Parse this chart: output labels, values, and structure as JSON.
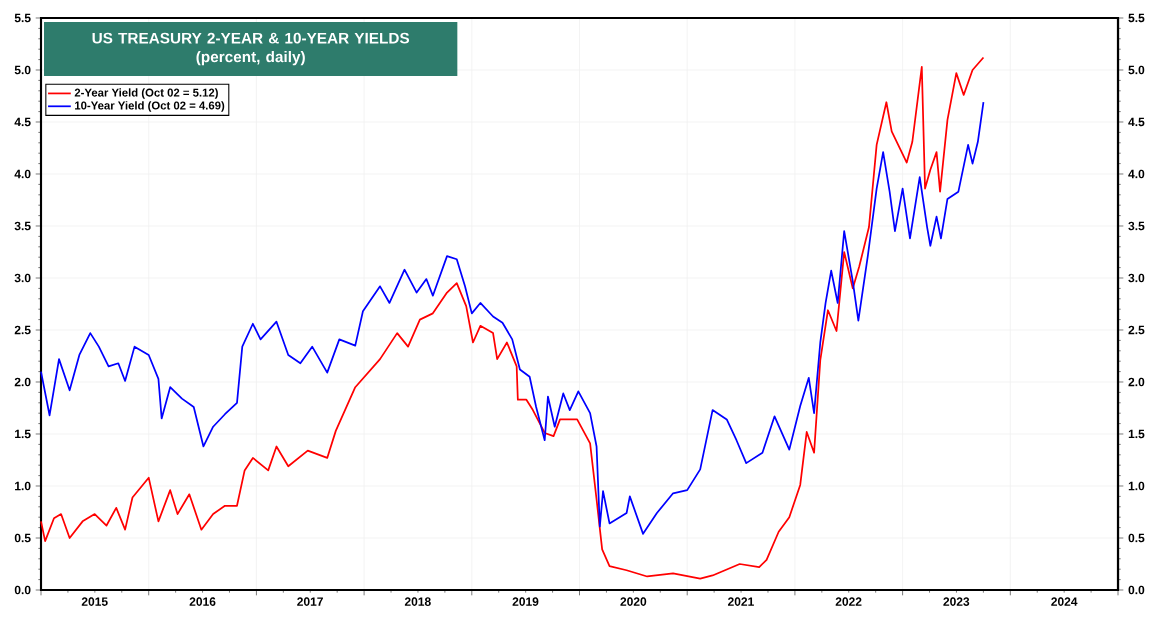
{
  "chart_data": {
    "type": "line",
    "title": "US TREASURY 2-YEAR & 10-YEAR YIELDS",
    "subtitle": "(percent, daily)",
    "xlim": [
      "2015-01-01",
      "2025-01-01"
    ],
    "xticks": [
      {
        "value": "2015-01-01",
        "label": null
      },
      {
        "value": "2016-01-01",
        "label": null
      },
      {
        "value": "2017-01-01",
        "label": null
      },
      {
        "value": "2018-01-01",
        "label": null
      },
      {
        "value": "2019-01-01",
        "label": null
      },
      {
        "value": "2020-01-01",
        "label": null
      },
      {
        "value": "2021-01-01",
        "label": null
      },
      {
        "value": "2022-01-01",
        "label": null
      },
      {
        "value": "2023-01-01",
        "label": null
      },
      {
        "value": "2024-01-01",
        "label": null
      },
      {
        "value": "2025-01-01",
        "label": null
      },
      {
        "value": "2015-07-02",
        "label": "2015"
      },
      {
        "value": "2016-07-02",
        "label": "2016"
      },
      {
        "value": "2017-07-02",
        "label": "2017"
      },
      {
        "value": "2018-07-02",
        "label": "2018"
      },
      {
        "value": "2019-07-02",
        "label": "2019"
      },
      {
        "value": "2020-07-02",
        "label": "2020"
      },
      {
        "value": "2021-07-02",
        "label": "2021"
      },
      {
        "value": "2022-07-02",
        "label": "2022"
      },
      {
        "value": "2023-07-02",
        "label": "2023"
      },
      {
        "value": "2024-07-02",
        "label": "2024"
      }
    ],
    "ylim": [
      0,
      5.5
    ],
    "yticks": [
      {
        "value": 0,
        "label": "0.0"
      },
      {
        "value": 0.5,
        "label": "0.5"
      },
      {
        "value": 1,
        "label": "1.0"
      },
      {
        "value": 1.5,
        "label": "1.5"
      },
      {
        "value": 2,
        "label": "2.0"
      },
      {
        "value": 2.5,
        "label": "2.5"
      },
      {
        "value": 3,
        "label": "3.0"
      },
      {
        "value": 3.5,
        "label": "3.5"
      },
      {
        "value": 4,
        "label": "4.0"
      },
      {
        "value": 4.5,
        "label": "4.5"
      },
      {
        "value": 5,
        "label": "5.0"
      },
      {
        "value": 5.5,
        "label": "5.5"
      }
    ],
    "y2lim": [
      0,
      5.5
    ],
    "y2ticks": [
      {
        "value": 0,
        "label": "0.0"
      },
      {
        "value": 0.5,
        "label": "0.5"
      },
      {
        "value": 1,
        "label": "1.0"
      },
      {
        "value": 1.5,
        "label": "1.5"
      },
      {
        "value": 2,
        "label": "2.0"
      },
      {
        "value": 2.5,
        "label": "2.5"
      },
      {
        "value": 3,
        "label": "3.0"
      },
      {
        "value": 3.5,
        "label": "3.5"
      },
      {
        "value": 4,
        "label": "4.0"
      },
      {
        "value": 4.5,
        "label": "4.5"
      },
      {
        "value": 5,
        "label": "5.0"
      },
      {
        "value": 5.5,
        "label": "5.5"
      }
    ],
    "grid": true,
    "legend": "top left",
    "marker": "none",
    "line_style": "solid",
    "series": [
      {
        "name": "2-Year Yield (Oct 02 = 5.12)",
        "color": "#ff0000",
        "x": [
          "2015-01-01",
          "2015-01-15",
          "2015-02-14",
          "2015-03-10",
          "2015-04-08",
          "2015-05-22",
          "2015-07-02",
          "2015-08-11",
          "2015-09-13",
          "2015-10-13",
          "2015-11-07",
          "2016-01-01",
          "2016-02-03",
          "2016-03-14",
          "2016-04-08",
          "2016-05-18",
          "2016-06-28",
          "2016-08-07",
          "2016-09-16",
          "2016-10-27",
          "2016-11-22",
          "2016-12-20",
          "2017-02-10",
          "2017-03-10",
          "2017-04-19",
          "2017-06-24",
          "2017-08-29",
          "2017-09-27",
          "2017-12-02",
          "2018-02-24",
          "2018-04-23",
          "2018-05-30",
          "2018-07-09",
          "2018-08-22",
          "2018-10-09",
          "2018-11-11",
          "2018-12-13",
          "2019-01-05",
          "2019-01-30",
          "2019-03-14",
          "2019-03-28",
          "2019-04-30",
          "2019-06-02",
          "2019-06-06",
          "2019-07-05",
          "2019-07-27",
          "2019-09-05",
          "2019-10-05",
          "2019-10-27",
          "2019-12-24",
          "2020-02-06",
          "2020-02-28",
          "2020-03-18",
          "2020-04-12",
          "2020-06-09",
          "2020-08-18",
          "2020-11-14",
          "2021-02-14",
          "2021-03-28",
          "2021-06-28",
          "2021-09-02",
          "2021-09-27",
          "2021-11-07",
          "2021-12-13",
          "2022-01-19",
          "2022-02-10",
          "2022-03-07",
          "2022-03-28",
          "2022-04-23",
          "2022-05-22",
          "2022-06-17",
          "2022-07-16",
          "2022-08-07",
          "2022-09-09",
          "2022-10-05",
          "2022-11-07",
          "2022-11-25",
          "2022-12-17",
          "2023-01-15",
          "2023-02-03",
          "2023-03-07",
          "2023-03-18",
          "2023-04-05",
          "2023-04-26",
          "2023-05-08",
          "2023-06-02",
          "2023-07-02",
          "2023-07-27",
          "2023-08-26",
          "2023-10-02"
        ],
        "values": [
          0.66,
          0.47,
          0.69,
          0.73,
          0.5,
          0.66,
          0.73,
          0.62,
          0.79,
          0.58,
          0.89,
          1.08,
          0.66,
          0.96,
          0.73,
          0.92,
          0.58,
          0.73,
          0.81,
          0.81,
          1.15,
          1.27,
          1.15,
          1.38,
          1.19,
          1.34,
          1.27,
          1.53,
          1.95,
          2.22,
          2.47,
          2.34,
          2.6,
          2.66,
          2.86,
          2.95,
          2.73,
          2.38,
          2.54,
          2.47,
          2.22,
          2.38,
          2.15,
          1.83,
          1.83,
          1.73,
          1.51,
          1.48,
          1.64,
          1.64,
          1.41,
          0.87,
          0.39,
          0.23,
          0.19,
          0.13,
          0.16,
          0.11,
          0.14,
          0.25,
          0.22,
          0.29,
          0.56,
          0.7,
          1.01,
          1.52,
          1.32,
          2.21,
          2.69,
          2.49,
          3.25,
          2.9,
          3.11,
          3.49,
          4.28,
          4.69,
          4.41,
          4.28,
          4.11,
          4.31,
          5.03,
          3.86,
          4.04,
          4.21,
          3.83,
          4.52,
          4.97,
          4.76,
          5.0,
          5.12
        ]
      },
      {
        "name": "10-Year Yield (Oct 02 = 4.69)",
        "color": "#0000ff",
        "x": [
          "2015-01-01",
          "2015-01-30",
          "2015-03-03",
          "2015-04-08",
          "2015-05-11",
          "2015-06-17",
          "2015-07-16",
          "2015-08-18",
          "2015-09-20",
          "2015-10-13",
          "2015-11-14",
          "2016-01-01",
          "2016-02-03",
          "2016-02-14",
          "2016-03-14",
          "2016-04-23",
          "2016-06-02",
          "2016-07-05",
          "2016-08-07",
          "2016-09-16",
          "2016-10-27",
          "2016-11-14",
          "2016-12-20",
          "2017-01-15",
          "2017-03-10",
          "2017-04-19",
          "2017-05-30",
          "2017-07-09",
          "2017-08-29",
          "2017-10-09",
          "2017-12-02",
          "2017-12-28",
          "2018-02-24",
          "2018-03-28",
          "2018-05-18",
          "2018-06-28",
          "2018-07-31",
          "2018-08-22",
          "2018-10-09",
          "2018-11-11",
          "2018-12-09",
          "2019-01-01",
          "2019-01-30",
          "2019-03-14",
          "2019-04-15",
          "2019-05-18",
          "2019-06-13",
          "2019-07-16",
          "2019-08-07",
          "2019-09-05",
          "2019-09-16",
          "2019-10-09",
          "2019-11-07",
          "2019-11-29",
          "2019-12-28",
          "2020-02-06",
          "2020-02-28",
          "2020-03-10",
          "2020-03-21",
          "2020-04-12",
          "2020-06-09",
          "2020-06-20",
          "2020-08-04",
          "2020-09-20",
          "2020-11-14",
          "2021-01-01",
          "2021-02-14",
          "2021-03-28",
          "2021-05-15",
          "2021-06-17",
          "2021-07-20",
          "2021-09-13",
          "2021-10-24",
          "2021-12-13",
          "2022-01-19",
          "2022-02-17",
          "2022-03-07",
          "2022-03-28",
          "2022-04-15",
          "2022-05-04",
          "2022-05-26",
          "2022-06-17",
          "2022-07-16",
          "2022-08-04",
          "2022-09-05",
          "2022-10-05",
          "2022-10-27",
          "2022-11-18",
          "2022-12-06",
          "2023-01-01",
          "2023-01-26",
          "2023-02-28",
          "2023-03-25",
          "2023-04-05",
          "2023-04-26",
          "2023-05-11",
          "2023-06-02",
          "2023-07-09",
          "2023-08-11",
          "2023-08-26",
          "2023-09-13",
          "2023-10-02"
        ],
        "values": [
          2.1,
          1.68,
          2.22,
          1.92,
          2.26,
          2.47,
          2.34,
          2.15,
          2.18,
          2.01,
          2.34,
          2.26,
          2.03,
          1.65,
          1.95,
          1.84,
          1.76,
          1.38,
          1.57,
          1.69,
          1.8,
          2.34,
          2.56,
          2.41,
          2.58,
          2.26,
          2.18,
          2.34,
          2.09,
          2.41,
          2.35,
          2.68,
          2.92,
          2.76,
          3.08,
          2.86,
          2.99,
          2.83,
          3.21,
          3.18,
          2.92,
          2.66,
          2.76,
          2.63,
          2.57,
          2.41,
          2.12,
          2.05,
          1.76,
          1.44,
          1.86,
          1.57,
          1.89,
          1.73,
          1.91,
          1.7,
          1.38,
          0.61,
          0.95,
          0.64,
          0.74,
          0.9,
          0.54,
          0.74,
          0.93,
          0.96,
          1.16,
          1.73,
          1.64,
          1.44,
          1.22,
          1.32,
          1.67,
          1.35,
          1.77,
          2.04,
          1.7,
          2.38,
          2.76,
          3.07,
          2.76,
          3.45,
          2.97,
          2.59,
          3.21,
          3.86,
          4.21,
          3.83,
          3.45,
          3.86,
          3.38,
          3.97,
          3.49,
          3.31,
          3.59,
          3.38,
          3.76,
          3.83,
          4.28,
          4.1,
          4.31,
          4.69
        ]
      }
    ]
  }
}
